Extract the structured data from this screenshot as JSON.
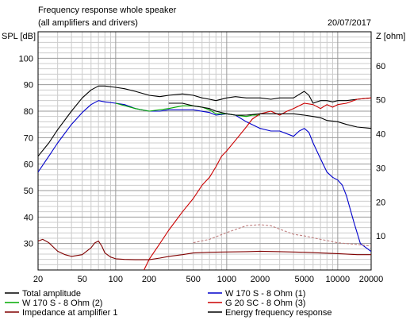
{
  "chart_data": {
    "type": "line",
    "title": "Frequency response whole speaker",
    "subtitle": "(all amplifiers and drivers)",
    "date": "20/07/2017",
    "ylabel": "SPL [dB]",
    "y2label": "Z [ohm]",
    "x_scale": "log",
    "xlim": [
      20,
      20000
    ],
    "ylim": [
      20,
      110
    ],
    "y2lim": [
      0,
      70
    ],
    "x_ticks": [
      {
        "value": 20,
        "label": "20"
      },
      {
        "value": 50,
        "label": "50"
      },
      {
        "value": 100,
        "label": "100"
      },
      {
        "value": 200,
        "label": "200"
      },
      {
        "value": 500,
        "label": "500"
      },
      {
        "value": 1000,
        "label": "1000"
      },
      {
        "value": 2000,
        "label": "2000"
      },
      {
        "value": 5000,
        "label": "5000"
      },
      {
        "value": 10000,
        "label": "10000"
      },
      {
        "value": 20000,
        "label": "20000"
      }
    ],
    "y_ticks": [
      {
        "value": 30,
        "label": "30"
      },
      {
        "value": 40,
        "label": "40"
      },
      {
        "value": 50,
        "label": "50"
      },
      {
        "value": 60,
        "label": "60"
      },
      {
        "value": 70,
        "label": "70"
      },
      {
        "value": 80,
        "label": "80"
      },
      {
        "value": 90,
        "label": "90"
      },
      {
        "value": 100,
        "label": "100"
      }
    ],
    "y2_ticks": [
      {
        "value": 10,
        "label": "10"
      },
      {
        "value": 20,
        "label": "20"
      },
      {
        "value": 30,
        "label": "30"
      },
      {
        "value": 40,
        "label": "40"
      },
      {
        "value": 50,
        "label": "50"
      },
      {
        "value": 60,
        "label": "60"
      }
    ],
    "grid": true,
    "legend_position": "bottom",
    "series": [
      {
        "name": "Total amplitude",
        "color": "#000000",
        "axis": "left",
        "x": [
          20,
          25,
          30,
          40,
          50,
          60,
          70,
          80,
          100,
          120,
          150,
          200,
          250,
          300,
          400,
          500,
          600,
          700,
          800,
          1000,
          1200,
          1500,
          2000,
          2500,
          3000,
          4000,
          5000,
          5500,
          6000,
          7000,
          8000,
          9000,
          10000,
          12000,
          15000,
          20000
        ],
        "y": [
          63,
          68,
          73,
          80,
          85,
          88,
          89.5,
          89.5,
          89,
          88.5,
          87.5,
          86,
          85.5,
          86,
          86.5,
          86,
          85,
          84.5,
          84,
          85,
          85.5,
          85,
          85,
          84.5,
          85,
          85,
          87.5,
          86,
          83,
          84,
          84,
          83.5,
          84,
          84,
          84.5,
          85
        ]
      },
      {
        "name": "W 170 S - 8 Ohm (1)",
        "color": "#0000cc",
        "axis": "left",
        "x": [
          20,
          25,
          30,
          40,
          50,
          60,
          70,
          80,
          100,
          120,
          150,
          200,
          250,
          300,
          400,
          500,
          700,
          800,
          1000,
          1200,
          1500,
          2000,
          2500,
          3000,
          4000,
          4500,
          5000,
          5500,
          6000,
          7000,
          8000,
          9000,
          10000,
          11000,
          12000,
          14000,
          16000,
          20000
        ],
        "y": [
          57,
          63,
          68,
          75,
          79.5,
          82.5,
          84,
          83.5,
          83,
          82.5,
          81,
          80,
          80,
          80.5,
          80.5,
          80.5,
          79.5,
          78.5,
          79,
          78.5,
          76,
          73.5,
          72.5,
          72.5,
          70.5,
          72.5,
          73.5,
          72,
          68,
          62,
          57,
          55,
          54,
          52,
          48,
          38,
          30,
          27
        ]
      },
      {
        "name": "W 170 S - 8 Ohm (2)",
        "color": "#00aa00",
        "axis": "left",
        "x": [
          100,
          150,
          200,
          300,
          400,
          500,
          600,
          700,
          800,
          1000,
          1200,
          1500,
          1700,
          2000
        ],
        "y": [
          83,
          81,
          80,
          81,
          82,
          82,
          81.5,
          80.5,
          79,
          79,
          78.5,
          78,
          78.5,
          78.5
        ]
      },
      {
        "name": "G 20 SC - 8 Ohm (3)",
        "color": "#cc0000",
        "axis": "left",
        "x": [
          180,
          200,
          250,
          300,
          400,
          500,
          600,
          700,
          800,
          900,
          1000,
          1200,
          1500,
          1700,
          2000,
          2500,
          3000,
          3500,
          4000,
          5000,
          6000,
          7000,
          8000,
          9000,
          10000,
          12000,
          15000,
          20000
        ],
        "y": [
          20,
          24,
          30,
          35,
          42,
          47,
          52,
          55,
          59,
          63,
          65,
          69,
          74,
          77,
          79,
          80,
          78.5,
          80,
          81,
          83,
          82.5,
          81,
          82.5,
          81.5,
          82.5,
          83,
          84.5,
          85
        ]
      },
      {
        "name": "Impedance at amplifier 1",
        "color": "#800000",
        "axis": "right",
        "x": [
          20,
          22,
          25,
          30,
          35,
          40,
          50,
          60,
          65,
          70,
          75,
          80,
          90,
          100,
          120,
          150,
          200,
          250,
          300,
          400,
          500,
          700,
          1000,
          1500,
          2000,
          3000,
          5000,
          7000,
          10000,
          15000,
          20000
        ],
        "y": [
          8.5,
          9,
          8,
          5.5,
          4.5,
          4,
          4.5,
          6.5,
          8,
          8.5,
          7,
          5,
          3.8,
          3.3,
          3.1,
          3,
          3,
          3.5,
          4,
          4.5,
          5,
          5.2,
          5.3,
          5.4,
          5.5,
          5.4,
          5.2,
          5,
          4.8,
          4.5,
          4.5
        ]
      },
      {
        "name": "Impedance at amplifier 1",
        "color": "#c08080",
        "axis": "right",
        "dashed": true,
        "x": [
          500,
          700,
          1000,
          1500,
          2000,
          2500,
          3000,
          4000,
          5000,
          7000,
          10000,
          15000,
          20000
        ],
        "y": [
          8,
          9,
          11,
          13,
          13.3,
          13,
          12,
          10.5,
          10,
          9,
          8,
          7.5,
          7
        ]
      },
      {
        "name": "Energy frequency response",
        "color": "#000000",
        "axis": "left",
        "x": [
          300,
          400,
          500,
          600,
          700,
          800,
          1000,
          1200,
          1500,
          2000,
          2500,
          3000,
          4000,
          5000,
          6000,
          7000,
          8000,
          10000,
          12000,
          15000,
          20000
        ],
        "y": [
          83,
          83,
          82,
          81.5,
          81,
          80,
          79,
          78.5,
          78.5,
          79,
          79,
          79,
          79,
          78.5,
          78,
          77.5,
          76.5,
          76,
          75,
          74,
          73.5
        ]
      }
    ],
    "legend": [
      {
        "label": "Total amplitude",
        "color": "#000000"
      },
      {
        "label": "W 170 S - 8 Ohm (1)",
        "color": "#0000cc"
      },
      {
        "label": "W 170 S - 8 Ohm (2)",
        "color": "#00aa00"
      },
      {
        "label": "G 20 SC - 8 Ohm (3)",
        "color": "#cc0000"
      },
      {
        "label": "Impedance at amplifier 1",
        "color": "#800000"
      },
      {
        "label": "Energy frequency response",
        "color": "#000000"
      }
    ]
  }
}
